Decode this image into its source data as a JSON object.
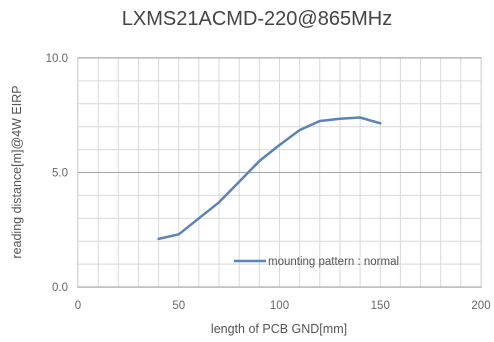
{
  "chart_data": {
    "type": "line",
    "title": "LXMS21ACMD-220@865MHz",
    "xlabel": "length of PCB GND[mm]",
    "ylabel": "reading distance[m]@4W EIRP",
    "xlim": [
      0,
      200
    ],
    "ylim": [
      0,
      10
    ],
    "xticks": [
      0,
      50,
      100,
      150,
      200
    ],
    "yticks": [
      0,
      5,
      10
    ],
    "xtick_labels": [
      "0",
      "50",
      "100",
      "150",
      "200"
    ],
    "ytick_labels": [
      "0.0",
      "5.0",
      "10.0"
    ],
    "grid": true,
    "legend_position": "inside-bottom-right",
    "series": [
      {
        "name": "mounting pattern : normal",
        "color": "#5b82b9",
        "x": [
          40,
          50,
          60,
          70,
          80,
          90,
          100,
          110,
          120,
          130,
          140,
          150
        ],
        "y": [
          2.1,
          2.3,
          3.0,
          3.7,
          4.6,
          5.5,
          6.2,
          6.85,
          7.25,
          7.35,
          7.4,
          7.15
        ]
      }
    ]
  }
}
